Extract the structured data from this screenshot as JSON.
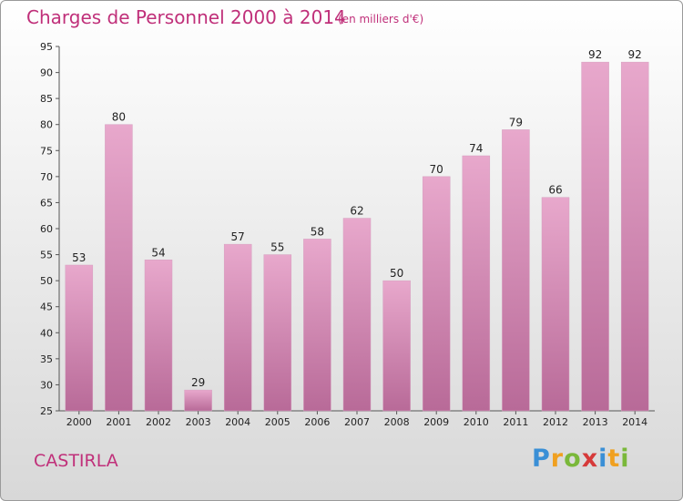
{
  "title": "Charges de Personnel 2000 à 2014",
  "subtitle": "(en milliers d'€)",
  "commune": "CASTIRLA",
  "logo": {
    "text": "Proxiti",
    "letters": [
      {
        "ch": "P",
        "color": "#3a8fd6"
      },
      {
        "ch": "r",
        "color": "#f0a020"
      },
      {
        "ch": "o",
        "color": "#7ab83a"
      },
      {
        "ch": "x",
        "color": "#d63a3a"
      },
      {
        "ch": "i",
        "color": "#3a8fd6"
      },
      {
        "ch": "t",
        "color": "#f0a020"
      },
      {
        "ch": "i",
        "color": "#7ab83a"
      }
    ]
  },
  "colors": {
    "bar_top": "#e8a8cc",
    "bar_bottom": "#b86a98",
    "accent": "#c0307a"
  },
  "chart_data": {
    "type": "bar",
    "title": "Charges de Personnel 2000 à 2014",
    "subtitle": "(en milliers d'€)",
    "categories": [
      "2000",
      "2001",
      "2002",
      "2003",
      "2004",
      "2005",
      "2006",
      "2007",
      "2008",
      "2009",
      "2010",
      "2011",
      "2012",
      "2013",
      "2014"
    ],
    "values": [
      53,
      80,
      54,
      29,
      57,
      55,
      58,
      62,
      50,
      70,
      74,
      79,
      66,
      92,
      92
    ],
    "ylim": [
      25,
      95
    ],
    "yticks": [
      25,
      30,
      35,
      40,
      45,
      50,
      55,
      60,
      65,
      70,
      75,
      80,
      85,
      90,
      95
    ],
    "grid": false,
    "legend": "none"
  }
}
